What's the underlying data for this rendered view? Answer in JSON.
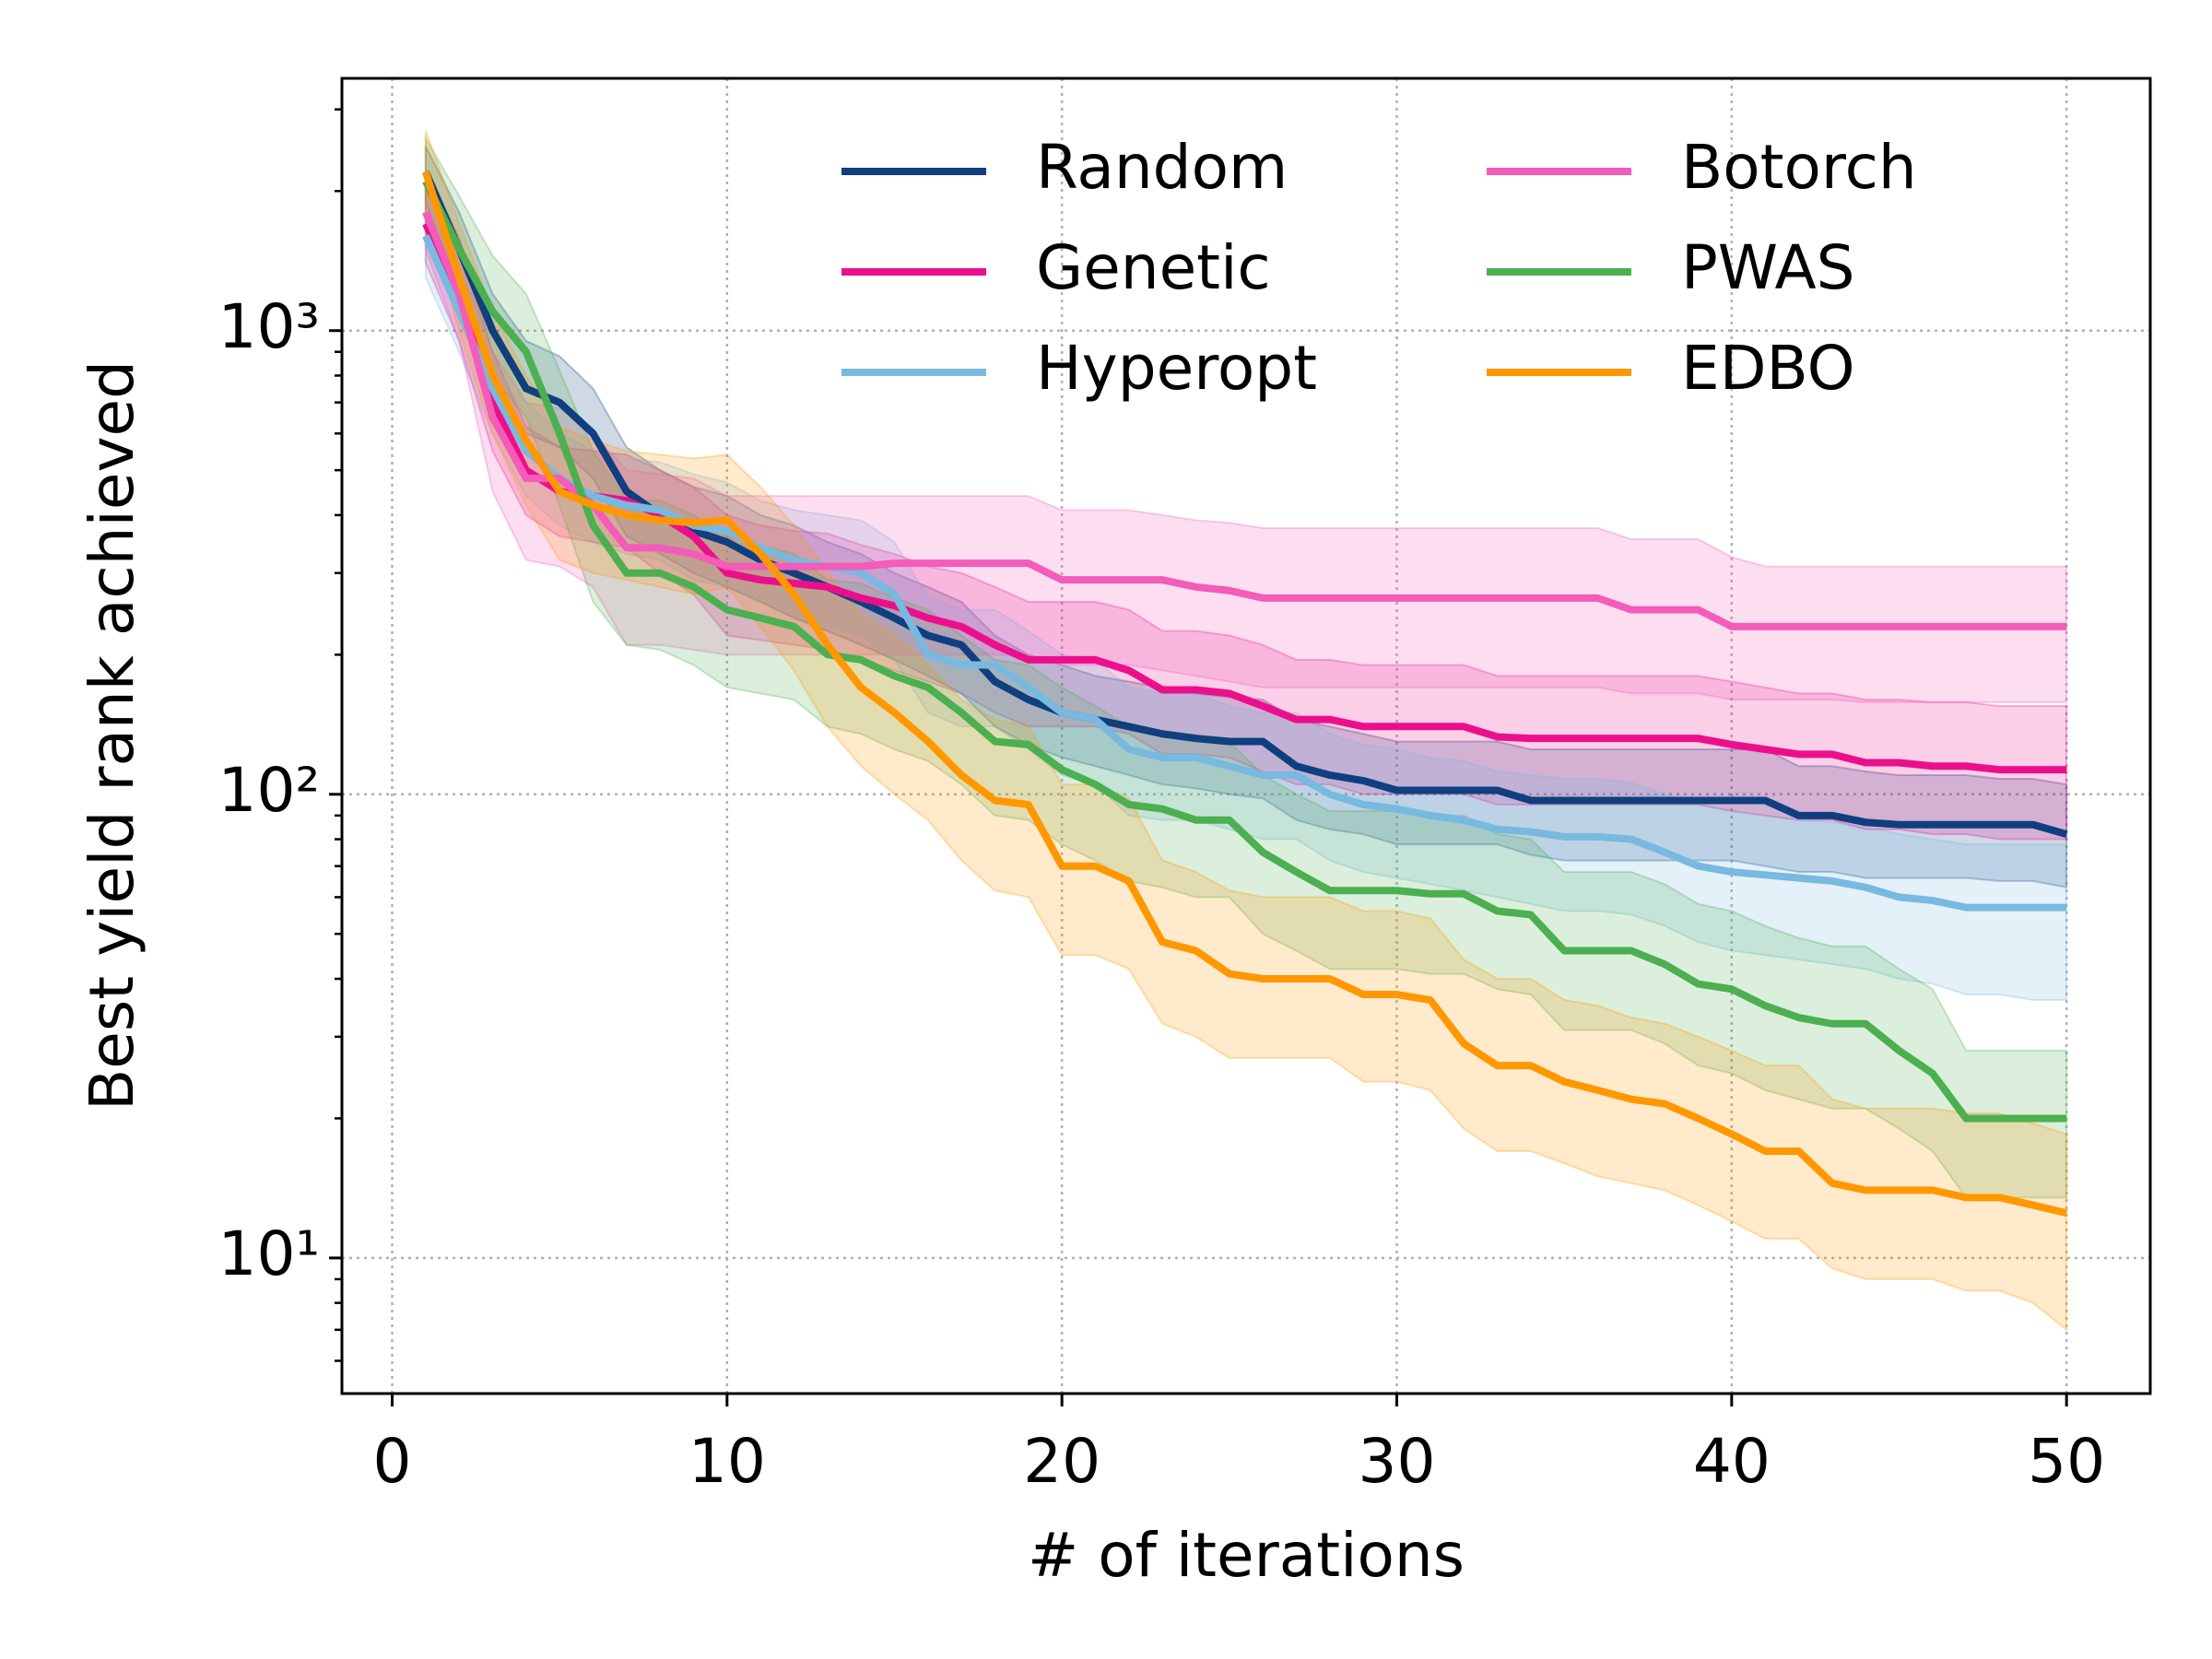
{
  "chart_data": {
    "type": "line",
    "xlabel": "# of iterations",
    "ylabel": "Best yield rank achieved",
    "xlim": [
      -1.5,
      52.5
    ],
    "xticks": [
      0,
      10,
      20,
      30,
      40,
      50
    ],
    "ylim": [
      5.1,
      3500
    ],
    "yscale": "log",
    "yticks": [
      {
        "value": 10,
        "label": "10¹"
      },
      {
        "value": 100,
        "label": "10²"
      },
      {
        "value": 1000,
        "label": "10³"
      }
    ],
    "yminorticks": [
      6,
      7,
      8,
      9,
      20,
      30,
      40,
      50,
      60,
      70,
      80,
      90,
      200,
      300,
      400,
      500,
      600,
      700,
      800,
      900,
      2000,
      3000
    ],
    "grid": true,
    "legend": "upper right",
    "legend_columns": 2,
    "x": [
      1,
      2,
      3,
      4,
      5,
      6,
      7,
      8,
      9,
      10,
      11,
      12,
      13,
      14,
      15,
      16,
      17,
      18,
      19,
      20,
      21,
      22,
      23,
      24,
      25,
      26,
      27,
      28,
      29,
      30,
      31,
      32,
      33,
      34,
      35,
      36,
      37,
      38,
      39,
      40,
      41,
      42,
      43,
      44,
      45,
      46,
      47,
      48,
      49,
      50
    ],
    "series": [
      {
        "name": "Random",
        "color": "#0f3f7f",
        "values": [
          2200,
          1500,
          1000,
          750,
          700,
          600,
          450,
          400,
          370,
          350,
          320,
          300,
          280,
          260,
          240,
          220,
          210,
          175,
          160,
          150,
          145,
          140,
          135,
          132,
          130,
          130,
          115,
          110,
          107,
          102,
          102,
          102,
          102,
          97,
          97,
          97,
          97,
          97,
          97,
          97,
          97,
          90,
          90,
          87,
          86,
          86,
          86,
          86,
          86,
          82
        ],
        "lower": [
          1900,
          1200,
          800,
          600,
          560,
          480,
          360,
          330,
          300,
          280,
          260,
          240,
          225,
          210,
          195,
          180,
          165,
          140,
          128,
          120,
          115,
          110,
          105,
          103,
          100,
          98,
          88,
          84,
          82,
          78,
          78,
          78,
          78,
          74,
          72,
          72,
          72,
          72,
          72,
          72,
          70,
          68,
          68,
          66,
          66,
          66,
          66,
          65,
          65,
          63
        ],
        "upper": [
          2500,
          1800,
          1200,
          950,
          880,
          750,
          560,
          500,
          460,
          440,
          400,
          380,
          350,
          330,
          300,
          280,
          260,
          220,
          200,
          190,
          180,
          175,
          170,
          165,
          162,
          160,
          145,
          140,
          135,
          130,
          130,
          130,
          130,
          125,
          125,
          125,
          125,
          125,
          125,
          125,
          125,
          115,
          115,
          112,
          110,
          110,
          110,
          108,
          108,
          105
        ]
      },
      {
        "name": "Genetic",
        "color": "#ec0f8c",
        "values": [
          1700,
          1200,
          700,
          500,
          450,
          440,
          430,
          400,
          360,
          300,
          290,
          285,
          280,
          265,
          255,
          240,
          230,
          210,
          195,
          195,
          195,
          185,
          168,
          168,
          165,
          155,
          145,
          145,
          140,
          140,
          140,
          140,
          133,
          132,
          132,
          132,
          132,
          132,
          132,
          128,
          125,
          122,
          122,
          117,
          117,
          115,
          115,
          113,
          113,
          113
        ],
        "lower": [
          1400,
          950,
          550,
          400,
          360,
          350,
          340,
          300,
          270,
          220,
          215,
          210,
          205,
          195,
          185,
          175,
          165,
          150,
          140,
          140,
          140,
          135,
          122,
          122,
          120,
          112,
          105,
          105,
          100,
          100,
          100,
          100,
          95,
          95,
          95,
          95,
          95,
          95,
          95,
          92,
          90,
          88,
          88,
          84,
          84,
          82,
          82,
          80,
          80,
          80
        ],
        "upper": [
          2000,
          1500,
          900,
          620,
          560,
          550,
          540,
          500,
          460,
          400,
          380,
          370,
          365,
          345,
          330,
          310,
          300,
          280,
          260,
          260,
          260,
          250,
          225,
          225,
          220,
          210,
          195,
          195,
          190,
          190,
          190,
          190,
          180,
          180,
          180,
          180,
          180,
          180,
          180,
          175,
          170,
          165,
          165,
          160,
          160,
          158,
          158,
          155,
          155,
          155
        ]
      },
      {
        "name": "Hyperopt",
        "color": "#78b9e0",
        "values": [
          1600,
          1100,
          750,
          550,
          480,
          440,
          420,
          410,
          380,
          370,
          340,
          320,
          310,
          300,
          270,
          200,
          190,
          190,
          170,
          150,
          145,
          125,
          120,
          120,
          115,
          110,
          110,
          100,
          95,
          93,
          90,
          88,
          84,
          83,
          81,
          81,
          80,
          75,
          70,
          68,
          67,
          66,
          65,
          63,
          60,
          59,
          57,
          57,
          57,
          57
        ],
        "lower": [
          1300,
          900,
          600,
          440,
          380,
          350,
          330,
          320,
          290,
          280,
          260,
          240,
          230,
          220,
          195,
          150,
          140,
          140,
          125,
          110,
          105,
          90,
          88,
          88,
          84,
          80,
          80,
          72,
          68,
          66,
          64,
          62,
          60,
          58,
          56,
          56,
          55,
          52,
          48,
          46,
          45,
          44,
          43,
          42,
          40,
          39,
          37,
          37,
          36,
          36
        ],
        "upper": [
          1900,
          1350,
          950,
          700,
          600,
          550,
          530,
          520,
          490,
          470,
          430,
          410,
          400,
          390,
          350,
          265,
          250,
          250,
          225,
          200,
          195,
          170,
          165,
          165,
          155,
          150,
          150,
          135,
          128,
          125,
          120,
          118,
          112,
          110,
          108,
          108,
          106,
          100,
          95,
          92,
          90,
          88,
          87,
          85,
          82,
          80,
          78,
          78,
          78,
          78
        ]
      },
      {
        "name": "Botorch",
        "color": "#f35cb8",
        "values": [
          1800,
          1200,
          650,
          480,
          480,
          420,
          340,
          340,
          330,
          310,
          310,
          310,
          310,
          310,
          315,
          315,
          315,
          315,
          315,
          290,
          290,
          290,
          290,
          280,
          275,
          265,
          265,
          265,
          265,
          265,
          265,
          265,
          265,
          265,
          265,
          265,
          250,
          250,
          250,
          230,
          230,
          230,
          230,
          230,
          230,
          230,
          230,
          230,
          230,
          230
        ],
        "lower": [
          1500,
          950,
          450,
          320,
          310,
          280,
          210,
          210,
          205,
          200,
          200,
          200,
          200,
          200,
          200,
          200,
          200,
          200,
          200,
          190,
          190,
          190,
          185,
          180,
          175,
          170,
          170,
          170,
          170,
          170,
          170,
          170,
          170,
          170,
          170,
          170,
          165,
          165,
          165,
          160,
          160,
          160,
          160,
          158,
          158,
          158,
          158,
          158,
          158,
          158
        ],
        "upper": [
          2200,
          1600,
          900,
          700,
          680,
          600,
          500,
          490,
          480,
          440,
          440,
          440,
          440,
          440,
          440,
          440,
          440,
          440,
          440,
          410,
          410,
          410,
          400,
          390,
          385,
          375,
          375,
          375,
          375,
          375,
          375,
          375,
          375,
          375,
          375,
          375,
          355,
          355,
          355,
          325,
          310,
          310,
          310,
          310,
          310,
          310,
          310,
          310,
          310,
          310
        ]
      },
      {
        "name": "PWAS",
        "color": "#4caf50",
        "values": [
          2100,
          1500,
          1100,
          900,
          600,
          380,
          300,
          300,
          280,
          250,
          240,
          230,
          200,
          195,
          180,
          170,
          150,
          130,
          128,
          113,
          105,
          95,
          93,
          88,
          88,
          75,
          68,
          62,
          62,
          62,
          61,
          61,
          56,
          55,
          46,
          46,
          46,
          43,
          39,
          38,
          35,
          33,
          32,
          32,
          28,
          25,
          20,
          20,
          20,
          20
        ],
        "lower": [
          1700,
          1150,
          800,
          650,
          420,
          260,
          210,
          205,
          190,
          170,
          165,
          160,
          140,
          135,
          125,
          118,
          105,
          90,
          88,
          78,
          72,
          65,
          63,
          60,
          60,
          50,
          46,
          42,
          42,
          42,
          41,
          41,
          38,
          37,
          31,
          31,
          31,
          29,
          26,
          25,
          23,
          22,
          21,
          21,
          19,
          17,
          13.5,
          13.5,
          13.5,
          13.5
        ],
        "upper": [
          2600,
          1950,
          1450,
          1200,
          820,
          550,
          430,
          430,
          400,
          360,
          345,
          330,
          290,
          285,
          265,
          250,
          220,
          195,
          190,
          170,
          155,
          140,
          135,
          130,
          130,
          110,
          100,
          92,
          92,
          92,
          90,
          90,
          82,
          80,
          68,
          68,
          68,
          64,
          58,
          56,
          52,
          49,
          47,
          47,
          42,
          38,
          28,
          28,
          28,
          28
        ]
      },
      {
        "name": "EDBO",
        "color": "#ff9800",
        "values": [
          2200,
          1300,
          800,
          580,
          450,
          420,
          400,
          390,
          385,
          390,
          330,
          270,
          210,
          170,
          150,
          130,
          110,
          97,
          95,
          70,
          70,
          65,
          48,
          46,
          41,
          40,
          40,
          40,
          37,
          37,
          36,
          29,
          26,
          26,
          24,
          23,
          22,
          21.5,
          20,
          18.5,
          17,
          17,
          14.5,
          14,
          14,
          14,
          13.5,
          13.5,
          13,
          12.5
        ],
        "lower": [
          1800,
          1000,
          600,
          420,
          320,
          300,
          290,
          280,
          270,
          280,
          230,
          185,
          140,
          115,
          100,
          88,
          72,
          62,
          60,
          45,
          45,
          42,
          32,
          30,
          27,
          27,
          27,
          27,
          24,
          24,
          23,
          19,
          17,
          17,
          16,
          15,
          14.5,
          14,
          13,
          12,
          11,
          11,
          9.5,
          9,
          9,
          9,
          8.5,
          8.5,
          8,
          7
        ],
        "upper": [
          2700,
          1700,
          1100,
          800,
          620,
          580,
          550,
          540,
          530,
          540,
          460,
          380,
          300,
          245,
          220,
          190,
          160,
          145,
          140,
          105,
          105,
          98,
          72,
          68,
          62,
          60,
          60,
          60,
          56,
          56,
          54,
          44,
          40,
          40,
          36,
          35,
          33,
          32,
          30,
          28,
          26,
          26,
          22,
          21,
          21,
          21,
          20.5,
          20.5,
          19.5,
          18.5
        ]
      }
    ]
  }
}
